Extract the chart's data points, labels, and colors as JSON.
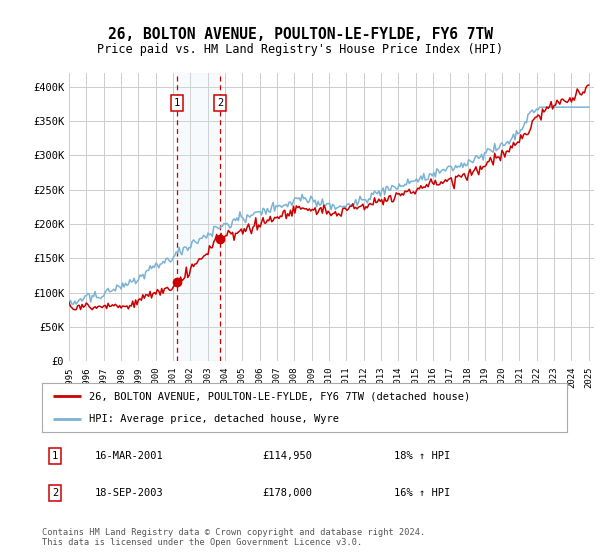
{
  "title": "26, BOLTON AVENUE, POULTON-LE-FYLDE, FY6 7TW",
  "subtitle": "Price paid vs. HM Land Registry's House Price Index (HPI)",
  "ylim": [
    0,
    420000
  ],
  "yticks": [
    0,
    50000,
    100000,
    150000,
    200000,
    250000,
    300000,
    350000,
    400000
  ],
  "ytick_labels": [
    "£0",
    "£50K",
    "£100K",
    "£150K",
    "£200K",
    "£250K",
    "£300K",
    "£350K",
    "£400K"
  ],
  "sale1_date": 2001.21,
  "sale1_price": 114950,
  "sale1_label": "1",
  "sale2_date": 2003.72,
  "sale2_price": 178000,
  "sale2_label": "2",
  "hpi_color": "#7ab3d4",
  "price_color": "#cc0000",
  "legend_line1": "26, BOLTON AVENUE, POULTON-LE-FYLDE, FY6 7TW (detached house)",
  "legend_line2": "HPI: Average price, detached house, Wyre",
  "table_row1_num": "1",
  "table_row1_date": "16-MAR-2001",
  "table_row1_price": "£114,950",
  "table_row1_hpi": "18% ↑ HPI",
  "table_row2_num": "2",
  "table_row2_date": "18-SEP-2003",
  "table_row2_price": "£178,000",
  "table_row2_hpi": "16% ↑ HPI",
  "footer": "Contains HM Land Registry data © Crown copyright and database right 2024.\nThis data is licensed under the Open Government Licence v3.0.",
  "bg_color": "#ffffff",
  "grid_color": "#cccccc",
  "box_shade": "#dce9f7"
}
